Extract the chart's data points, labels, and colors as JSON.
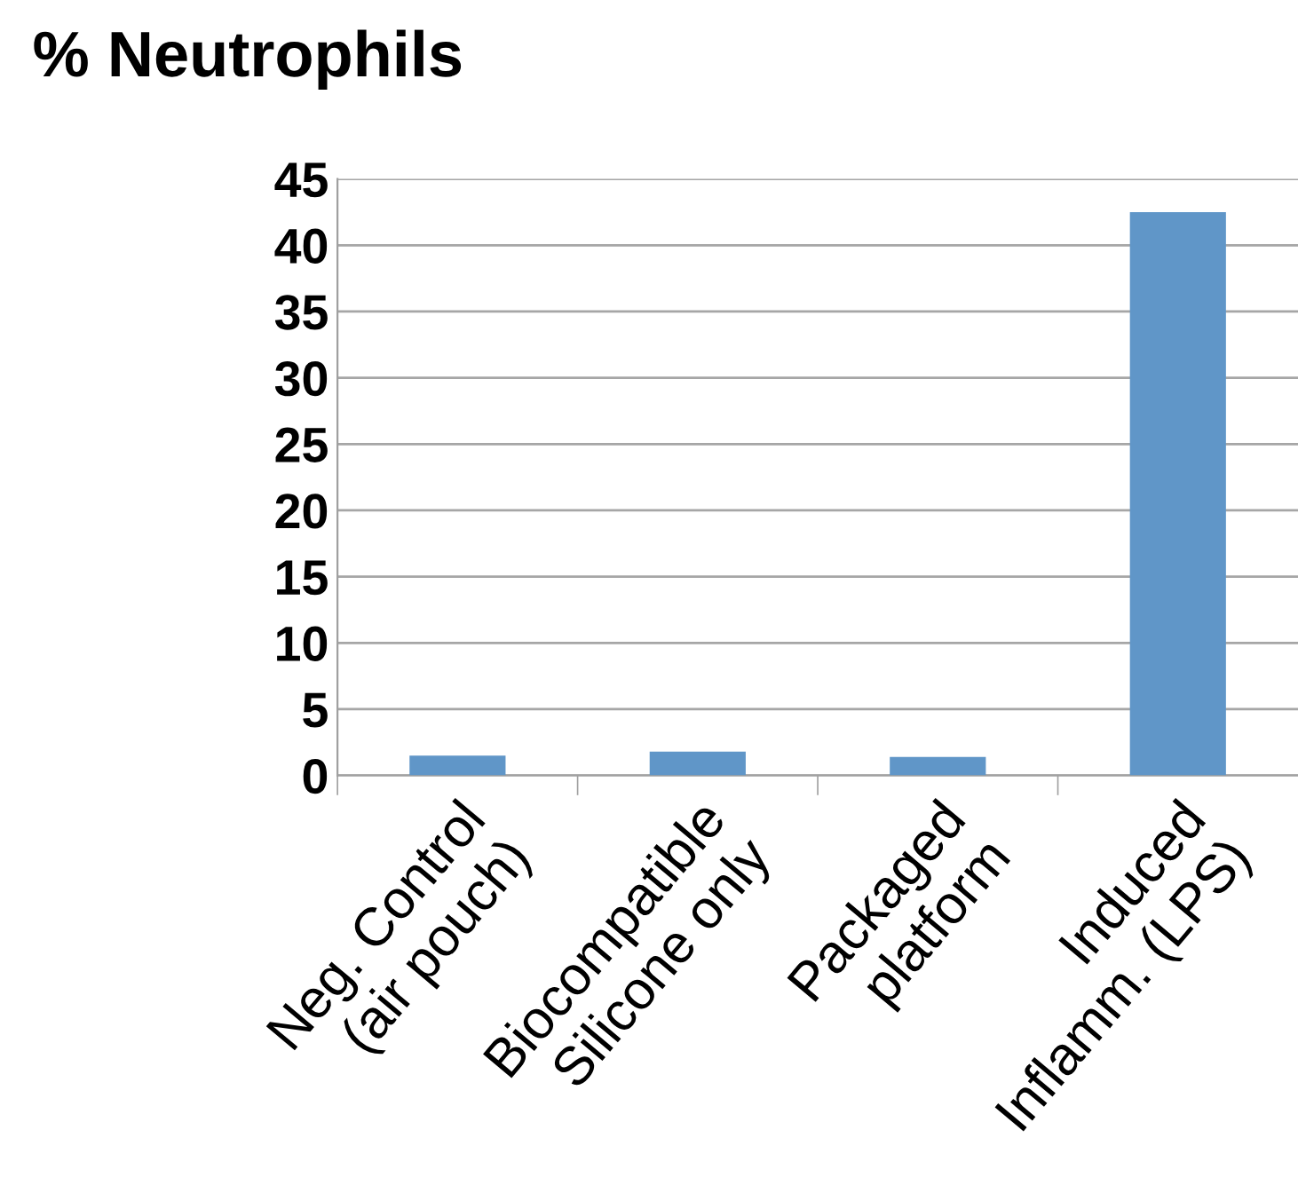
{
  "chart_data": {
    "type": "bar",
    "title": "% Neutrophils",
    "categories": [
      "Neg. Control\n(air pouch)",
      "Biocompatible\nSilicone only",
      "Packaged\nplatform",
      "Induced\nInflamm. (LPS)"
    ],
    "values": [
      1.5,
      1.8,
      1.4,
      42.5
    ],
    "color": "#6096c8",
    "ylim": [
      0,
      45
    ],
    "yticks": [
      0,
      5,
      10,
      15,
      20,
      25,
      30,
      35,
      40,
      45
    ],
    "grid": "y",
    "legend": false
  }
}
